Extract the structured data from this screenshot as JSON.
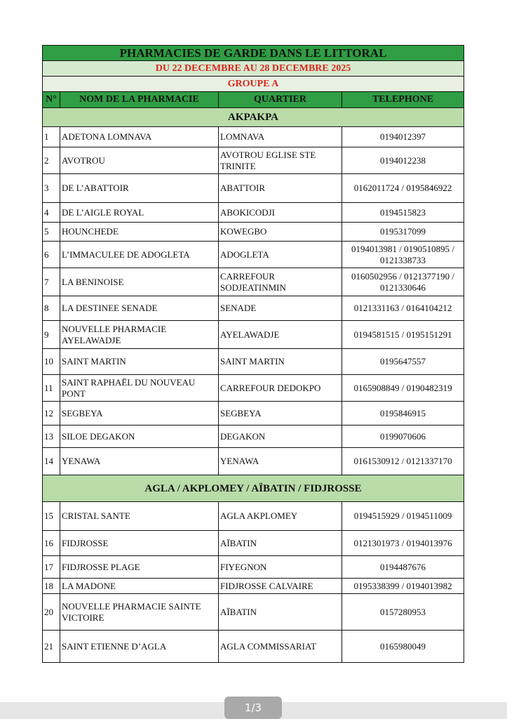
{
  "header": {
    "title": "PHARMACIES DE GARDE DANS LE LITTORAL",
    "period": "DU 22 DECEMBRE AU 28 DECEMBRE 2025",
    "group": "GROUPE A"
  },
  "table": {
    "columns": [
      "N°",
      "NOM DE LA PHARMACIE",
      "QUARTIER",
      "TELEPHONE"
    ],
    "sections": [
      {
        "name": "AKPAKPA",
        "rows": [
          [
            "1",
            "ADETONA LOMNAVA",
            "LOMNAVA",
            "0194012397"
          ],
          [
            "2",
            "AVOTROU",
            "AVOTROU EGLISE STE TRINITE",
            "0194012238"
          ],
          [
            "3",
            "DE L’ABATTOIR",
            "ABATTOIR",
            "0162011724 / 0195846922"
          ],
          [
            "4",
            "DE L’AIGLE ROYAL",
            "ABOKICODJI",
            "0194515823"
          ],
          [
            "5",
            "HOUNCHEDE",
            "KOWEGBO",
            "0195317099"
          ],
          [
            "6",
            "L’IMMACULEE DE ADOGLETA",
            "ADOGLETA",
            "0194013981 / 0190510895 / 0121338733"
          ],
          [
            "7",
            "LA BENINOISE",
            "CARREFOUR SODJEATINMIN",
            "0160502956 / 0121377190 / 0121330646"
          ],
          [
            "8",
            "LA DESTINEE SENADE",
            "SENADE",
            "0121331163 / 0164104212"
          ],
          [
            "9",
            "NOUVELLE PHARMACIE AYELAWADJE",
            "AYELAWADJE",
            "0194581515 / 0195151291"
          ],
          [
            "10",
            "SAINT MARTIN",
            "SAINT MARTIN",
            "0195647557"
          ],
          [
            "11",
            "SAINT RAPHAËL DU NOUVEAU PONT",
            "CARREFOUR DEDOKPO",
            "0165908849 / 0190482319"
          ],
          [
            "12",
            "SEGBEYA",
            "SEGBEYA",
            "0195846915"
          ],
          [
            "13",
            "SILOE DEGAKON",
            "DEGAKON",
            "0199070606"
          ],
          [
            "14",
            "YENAWA",
            "YENAWA",
            "0161530912 / 0121337170"
          ]
        ]
      },
      {
        "name": "AGLA / AKPLOMEY / AÏBATIN / FIDJROSSE",
        "rows": [
          [
            "15",
            "CRISTAL SANTE",
            "AGLA AKPLOMEY",
            "0194515929 / 0194511009"
          ],
          [
            "16",
            "FIDJROSSE",
            "AÏBATIN",
            "0121301973 / 0194013976"
          ],
          [
            "17",
            "FIDJROSSE PLAGE",
            "FIYEGNON",
            "0194487676"
          ],
          [
            "18",
            "LA MADONE",
            "FIDJROSSE CALVAIRE",
            "0195338399 / 0194013982"
          ],
          [
            "20",
            "NOUVELLE PHARMACIE SAINTE VICTOIRE",
            "AÏBATIN",
            "0157280953"
          ],
          [
            "21",
            "SAINT ETIENNE D’AGLA",
            "AGLA COMMISSARIAT",
            "0165980049"
          ]
        ]
      }
    ]
  },
  "footer": {
    "page": "1/3"
  }
}
